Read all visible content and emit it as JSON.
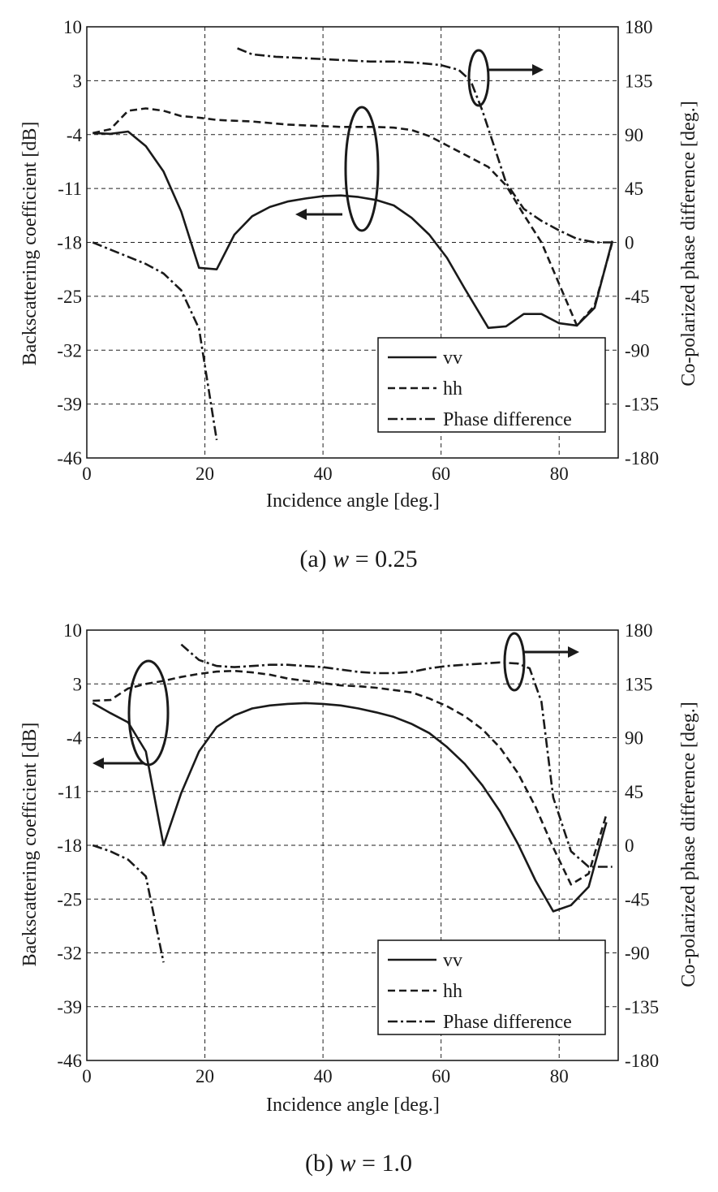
{
  "chart_data": [
    {
      "type": "line",
      "caption_prefix": "(a) ",
      "caption_var": "w",
      "caption_value": " = 0.25",
      "xlabel": "Incidence angle [deg.]",
      "ylabel": "Backscattering coefficient [dB]",
      "y2label": "Co-polarized phase difference [deg.]",
      "xlim": [
        0,
        90
      ],
      "ylim": [
        -46,
        10
      ],
      "y2lim": [
        -180,
        180
      ],
      "x_ticks": [
        "0",
        "20",
        "40",
        "60",
        "80"
      ],
      "y_ticks": [
        "10",
        "3",
        "-4",
        "-11",
        "-18",
        "-25",
        "-32",
        "-39",
        "-46"
      ],
      "y2_ticks": [
        "180",
        "135",
        "90",
        "45",
        "0",
        "-45",
        "-90",
        "-135",
        "-180"
      ],
      "grid": true,
      "legend_position": "bottom-right",
      "legend": [
        "vv",
        "hh",
        "Phase difference"
      ],
      "series": [
        {
          "name": "vv",
          "axis": "left",
          "style": "solid",
          "segments": [
            [
              [
                1,
                -3.8
              ],
              [
                4,
                -3.9
              ],
              [
                7,
                -3.6
              ],
              [
                10,
                -5.5
              ],
              [
                13,
                -8.8
              ],
              [
                16,
                -14
              ],
              [
                19,
                -21.3
              ],
              [
                22,
                -21.5
              ],
              [
                25,
                -17
              ],
              [
                28,
                -14.6
              ],
              [
                31,
                -13.4
              ],
              [
                34,
                -12.7
              ],
              [
                37,
                -12.3
              ],
              [
                40,
                -12
              ],
              [
                43,
                -11.9
              ],
              [
                46,
                -12.1
              ],
              [
                49,
                -12.5
              ],
              [
                52,
                -13.2
              ],
              [
                55,
                -14.8
              ],
              [
                58,
                -17
              ],
              [
                61,
                -20
              ],
              [
                64,
                -24
              ],
              [
                68,
                -29.1
              ],
              [
                71,
                -28.9
              ],
              [
                74,
                -27.3
              ],
              [
                77,
                -27.3
              ],
              [
                80,
                -28.5
              ],
              [
                83,
                -28.8
              ],
              [
                86,
                -26.5
              ],
              [
                89,
                -17.8
              ]
            ]
          ]
        },
        {
          "name": "hh",
          "axis": "left",
          "style": "dashed",
          "segments": [
            [
              [
                1,
                -3.8
              ],
              [
                4,
                -3.3
              ],
              [
                7,
                -0.9
              ],
              [
                10,
                -0.6
              ],
              [
                13,
                -0.9
              ],
              [
                16,
                -1.6
              ],
              [
                19,
                -1.8
              ],
              [
                22,
                -2.1
              ],
              [
                25,
                -2.2
              ],
              [
                28,
                -2.3
              ],
              [
                31,
                -2.5
              ],
              [
                34,
                -2.7
              ],
              [
                37,
                -2.8
              ],
              [
                40,
                -2.9
              ],
              [
                43,
                -3.0
              ],
              [
                46,
                -3.0
              ],
              [
                49,
                -3.0
              ],
              [
                52,
                -3.1
              ],
              [
                55,
                -3.4
              ],
              [
                58,
                -4.2
              ],
              [
                61,
                -5.4
              ],
              [
                64,
                -6.6
              ],
              [
                68,
                -8.2
              ],
              [
                71,
                -10.6
              ],
              [
                74,
                -14.4
              ],
              [
                77,
                -18
              ],
              [
                80,
                -23.4
              ],
              [
                83,
                -28.8
              ],
              [
                86,
                -26.2
              ],
              [
                89,
                -18
              ]
            ]
          ]
        },
        {
          "name": "Phase difference",
          "axis": "right",
          "style": "dashdot",
          "segments": [
            [
              [
                1,
                0
              ],
              [
                4,
                -6
              ],
              [
                7,
                -12
              ],
              [
                10,
                -18
              ],
              [
                13,
                -26
              ],
              [
                16,
                -40
              ],
              [
                19,
                -72
              ],
              [
                22,
                -165
              ]
            ],
            [
              [
                25.5,
                162
              ],
              [
                28,
                157
              ],
              [
                32,
                155
              ],
              [
                36,
                154
              ],
              [
                40,
                153
              ],
              [
                44,
                152
              ],
              [
                48,
                151
              ],
              [
                52,
                151
              ],
              [
                56,
                150
              ],
              [
                60,
                148
              ],
              [
                63,
                144
              ],
              [
                65,
                135
              ],
              [
                67,
                110
              ],
              [
                69,
                80
              ],
              [
                71,
                50
              ],
              [
                74,
                28
              ],
              [
                77,
                18
              ],
              [
                80,
                10
              ],
              [
                83,
                3
              ],
              [
                86,
                0
              ],
              [
                89,
                0
              ]
            ]
          ]
        }
      ]
    },
    {
      "type": "line",
      "caption_prefix": "(b) ",
      "caption_var": "w",
      "caption_value": " = 1.0",
      "xlabel": "Incidence angle [deg.]",
      "ylabel": "Backscattering coefficient [dB]",
      "y2label": "Co-polarized phase difference [deg.]",
      "xlim": [
        0,
        90
      ],
      "ylim": [
        -46,
        10
      ],
      "y2lim": [
        -180,
        180
      ],
      "x_ticks": [
        "0",
        "20",
        "40",
        "60",
        "80"
      ],
      "y_ticks": [
        "10",
        "3",
        "-4",
        "-11",
        "-18",
        "-25",
        "-32",
        "-39",
        "-46"
      ],
      "y2_ticks": [
        "180",
        "135",
        "90",
        "45",
        "0",
        "-45",
        "-90",
        "-135",
        "-180"
      ],
      "grid": true,
      "legend_position": "bottom-right",
      "legend": [
        "vv",
        "hh",
        "Phase difference"
      ],
      "series": [
        {
          "name": "vv",
          "axis": "left",
          "style": "solid",
          "segments": [
            [
              [
                1,
                0.5
              ],
              [
                4,
                -0.8
              ],
              [
                7,
                -2
              ],
              [
                10,
                -5.8
              ],
              [
                13,
                -18
              ],
              [
                16,
                -11.2
              ],
              [
                19,
                -5.8
              ],
              [
                22,
                -2.6
              ],
              [
                25,
                -1.1
              ],
              [
                28,
                -0.2
              ],
              [
                31,
                0.2
              ],
              [
                34,
                0.4
              ],
              [
                37,
                0.5
              ],
              [
                40,
                0.4
              ],
              [
                43,
                0.2
              ],
              [
                46,
                -0.2
              ],
              [
                49,
                -0.7
              ],
              [
                52,
                -1.3
              ],
              [
                55,
                -2.2
              ],
              [
                58,
                -3.4
              ],
              [
                61,
                -5.2
              ],
              [
                64,
                -7.4
              ],
              [
                67,
                -10.2
              ],
              [
                70,
                -13.6
              ],
              [
                73,
                -17.8
              ],
              [
                76,
                -22.6
              ],
              [
                79,
                -26.6
              ],
              [
                82,
                -25.8
              ],
              [
                85,
                -23.4
              ],
              [
                88,
                -15
              ]
            ]
          ]
        },
        {
          "name": "hh",
          "axis": "left",
          "style": "dashed",
          "segments": [
            [
              [
                1,
                0.8
              ],
              [
                4,
                0.9
              ],
              [
                7,
                2.4
              ],
              [
                10,
                3
              ],
              [
                13,
                3.4
              ],
              [
                16,
                3.9
              ],
              [
                19,
                4.3
              ],
              [
                22,
                4.6
              ],
              [
                25,
                4.7
              ],
              [
                28,
                4.5
              ],
              [
                31,
                4.2
              ],
              [
                34,
                3.7
              ],
              [
                37,
                3.4
              ],
              [
                40,
                3.1
              ],
              [
                43,
                2.8
              ],
              [
                46,
                2.7
              ],
              [
                49,
                2.5
              ],
              [
                52,
                2.2
              ],
              [
                55,
                1.9
              ],
              [
                58,
                1.1
              ],
              [
                61,
                0.1
              ],
              [
                64,
                -1.2
              ],
              [
                67,
                -2.9
              ],
              [
                70,
                -5.3
              ],
              [
                73,
                -8.6
              ],
              [
                76,
                -13
              ],
              [
                79,
                -18.3
              ],
              [
                82,
                -23.1
              ],
              [
                85,
                -21.7
              ],
              [
                88,
                -14
              ]
            ]
          ]
        },
        {
          "name": "Phase difference",
          "axis": "right",
          "style": "dashdot",
          "segments": [
            [
              [
                1,
                0
              ],
              [
                4,
                -5
              ],
              [
                7,
                -12
              ],
              [
                10,
                -26
              ],
              [
                13,
                -98
              ]
            ],
            [
              [
                16,
                168
              ],
              [
                19,
                155
              ],
              [
                22,
                150
              ],
              [
                25,
                149
              ],
              [
                28,
                150
              ],
              [
                31,
                151
              ],
              [
                34,
                151
              ],
              [
                37,
                150
              ],
              [
                40,
                149
              ],
              [
                43,
                147
              ],
              [
                46,
                145
              ],
              [
                49,
                144
              ],
              [
                52,
                144
              ],
              [
                55,
                145
              ],
              [
                58,
                148
              ],
              [
                61,
                150
              ],
              [
                64,
                151
              ],
              [
                67,
                152
              ],
              [
                70,
                153
              ],
              [
                73,
                152
              ],
              [
                75,
                148
              ],
              [
                77,
                120
              ],
              [
                79,
                40
              ],
              [
                82,
                -5
              ],
              [
                85,
                -18
              ],
              [
                89,
                -18
              ]
            ]
          ]
        }
      ]
    }
  ]
}
